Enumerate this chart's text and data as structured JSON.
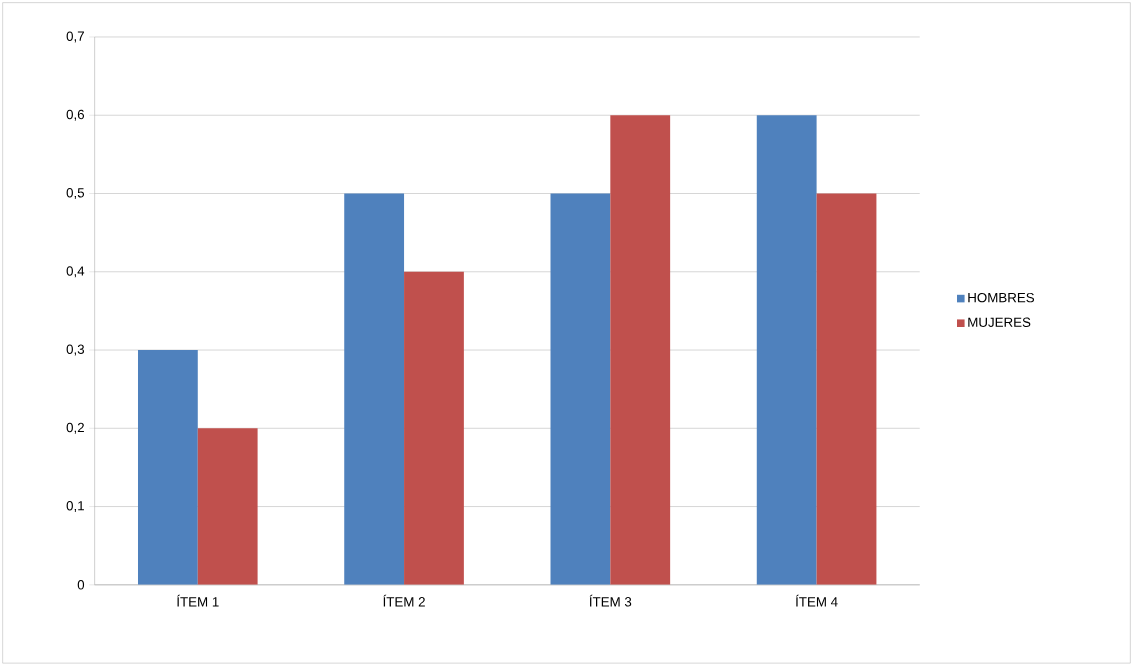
{
  "chart_data": {
    "type": "bar",
    "categories": [
      "ÍTEM 1",
      "ÍTEM 2",
      "ÍTEM 3",
      "ÍTEM 4"
    ],
    "series": [
      {
        "name": "HOMBRES",
        "color": "#4f81bd",
        "values": [
          0.3,
          0.5,
          0.5,
          0.6
        ]
      },
      {
        "name": "MUJERES",
        "color": "#c0504d",
        "values": [
          0.2,
          0.4,
          0.6,
          0.5
        ]
      }
    ],
    "ylim": [
      0,
      0.7
    ],
    "yticks": [
      0,
      {
        "value": 0.1,
        "label": "0,1"
      },
      {
        "value": 0.2,
        "label": "0,2"
      },
      {
        "value": 0.3,
        "label": "0,3"
      },
      {
        "value": 0.4,
        "label": "0,4"
      },
      {
        "value": 0.5,
        "label": "0,5"
      },
      {
        "value": 0.6,
        "label": "0,6"
      },
      {
        "value": 0.7,
        "label": "0,7"
      }
    ],
    "grid": "y",
    "legend": "right"
  }
}
